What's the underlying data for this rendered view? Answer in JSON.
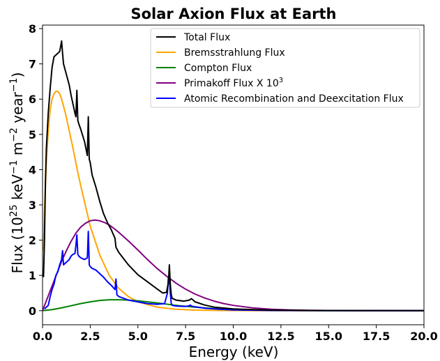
{
  "chart_data": {
    "type": "line",
    "title": "Solar Axion Flux at Earth",
    "xlabel": "Energy (keV)",
    "ylabel": {
      "prefix": "Flux (10",
      "sup1": "25",
      "mid1": " keV",
      "sup2": "−1",
      "mid2": " m",
      "sup3": "−2",
      "mid3": " year",
      "sup4": "−1",
      "suffix": ")"
    },
    "xlim": [
      0,
      20
    ],
    "ylim": [
      -0.4,
      8.1
    ],
    "xticks": [
      0.0,
      2.5,
      5.0,
      7.5,
      10.0,
      12.5,
      15.0,
      17.5,
      20.0
    ],
    "xtick_labels": [
      "0.0",
      "2.5",
      "5.0",
      "7.5",
      "10.0",
      "12.5",
      "15.0",
      "17.5",
      "20.0"
    ],
    "yticks": [
      0,
      1,
      2,
      3,
      4,
      5,
      6,
      7,
      8
    ],
    "ytick_labels": [
      "0",
      "1",
      "2",
      "3",
      "4",
      "5",
      "6",
      "7",
      "8"
    ],
    "grid": false,
    "legend_position": "top-right",
    "series": [
      {
        "name": "Total Flux",
        "color": "#000000",
        "x": [
          0.05,
          0.1,
          0.12,
          0.15,
          0.2,
          0.3,
          0.4,
          0.5,
          0.6,
          0.7,
          0.8,
          0.9,
          1.0,
          1.05,
          1.1,
          1.2,
          1.3,
          1.4,
          1.5,
          1.6,
          1.7,
          1.75,
          1.8,
          1.85,
          1.9,
          2.0,
          2.2,
          2.35,
          2.4,
          2.45,
          2.5,
          2.6,
          2.8,
          3.0,
          3.2,
          3.4,
          3.6,
          3.8,
          3.85,
          3.9,
          4.0,
          4.5,
          5.0,
          5.5,
          6.0,
          6.3,
          6.5,
          6.6,
          6.65,
          6.7,
          6.75,
          6.8,
          7.0,
          7.4,
          7.7,
          7.8,
          7.9,
          8.0,
          8.5,
          9.0,
          10.0,
          11.0,
          12.0,
          13.0,
          14.0,
          15.0,
          17.5,
          20.0
        ],
        "y": [
          0.95,
          1.95,
          2.6,
          3.6,
          4.6,
          5.6,
          6.3,
          6.9,
          7.2,
          7.25,
          7.3,
          7.35,
          7.65,
          7.3,
          7.0,
          6.8,
          6.6,
          6.4,
          6.1,
          5.85,
          5.6,
          5.5,
          6.25,
          5.4,
          5.3,
          5.15,
          4.8,
          4.4,
          5.5,
          4.3,
          4.2,
          3.85,
          3.5,
          3.1,
          2.75,
          2.5,
          2.3,
          2.05,
          1.8,
          1.75,
          1.65,
          1.3,
          1.02,
          0.82,
          0.62,
          0.5,
          0.52,
          0.8,
          1.3,
          0.75,
          0.45,
          0.35,
          0.3,
          0.27,
          0.3,
          0.34,
          0.3,
          0.25,
          0.16,
          0.1,
          0.05,
          0.03,
          0.015,
          0.01,
          0.006,
          0.004,
          0.002,
          0.001
        ]
      },
      {
        "name": "Bremsstrahlung Flux",
        "color": "#ffa500",
        "x": [
          0.05,
          0.1,
          0.2,
          0.3,
          0.4,
          0.5,
          0.6,
          0.7,
          0.8,
          0.9,
          1.0,
          1.2,
          1.4,
          1.6,
          1.8,
          2.0,
          2.5,
          3.0,
          3.5,
          4.0,
          4.5,
          5.0,
          6.0,
          7.0,
          8.0,
          9.0,
          10.0,
          12.5,
          15.0,
          20.0
        ],
        "y": [
          1.7,
          2.8,
          4.2,
          5.1,
          5.7,
          6.0,
          6.15,
          6.22,
          6.22,
          6.15,
          6.0,
          5.6,
          5.1,
          4.6,
          4.05,
          3.55,
          2.4,
          1.58,
          1.0,
          0.63,
          0.4,
          0.25,
          0.1,
          0.04,
          0.016,
          0.007,
          0.003,
          0.0005,
          0.0001,
          0.0
        ]
      },
      {
        "name": "Compton Flux",
        "color": "#008000",
        "x": [
          0.0,
          0.5,
          1.0,
          1.5,
          2.0,
          2.5,
          3.0,
          3.5,
          4.0,
          4.5,
          5.0,
          5.5,
          6.0,
          7.0,
          8.0,
          9.0,
          10.0,
          11.0,
          12.0,
          13.0,
          15.0,
          20.0
        ],
        "y": [
          0.0,
          0.03,
          0.08,
          0.14,
          0.2,
          0.25,
          0.29,
          0.31,
          0.31,
          0.3,
          0.28,
          0.25,
          0.22,
          0.15,
          0.1,
          0.06,
          0.035,
          0.02,
          0.01,
          0.005,
          0.001,
          0.0
        ]
      },
      {
        "name": "Primakoff Flux X 10^3",
        "label_text": "Primakoff Flux X 10",
        "label_sup": "3",
        "color": "#800080",
        "x": [
          0.0,
          0.25,
          0.5,
          0.75,
          1.0,
          1.25,
          1.5,
          1.75,
          2.0,
          2.25,
          2.5,
          2.75,
          3.0,
          3.25,
          3.5,
          3.75,
          4.0,
          4.5,
          5.0,
          5.5,
          6.0,
          6.5,
          7.0,
          7.5,
          8.0,
          8.5,
          9.0,
          9.5,
          10.0,
          11.0,
          12.0,
          13.0,
          14.0,
          15.0,
          17.5,
          20.0
        ],
        "y": [
          0.0,
          0.35,
          0.7,
          1.05,
          1.4,
          1.7,
          1.97,
          2.2,
          2.37,
          2.48,
          2.55,
          2.57,
          2.55,
          2.5,
          2.43,
          2.33,
          2.22,
          1.98,
          1.72,
          1.45,
          1.2,
          0.98,
          0.78,
          0.61,
          0.47,
          0.36,
          0.27,
          0.2,
          0.15,
          0.08,
          0.04,
          0.02,
          0.01,
          0.005,
          0.001,
          0.0
        ]
      },
      {
        "name": "Atomic Recombination and Deexcitation Flux",
        "color": "#0000ff",
        "x": [
          0.1,
          0.2,
          0.3,
          0.4,
          0.5,
          0.6,
          0.7,
          0.8,
          0.9,
          1.0,
          1.05,
          1.1,
          1.2,
          1.3,
          1.4,
          1.5,
          1.6,
          1.7,
          1.75,
          1.8,
          1.85,
          1.9,
          2.0,
          2.2,
          2.35,
          2.4,
          2.45,
          2.5,
          2.6,
          2.8,
          3.0,
          3.2,
          3.4,
          3.6,
          3.8,
          3.85,
          3.9,
          4.0,
          4.5,
          5.0,
          5.5,
          6.0,
          6.4,
          6.55,
          6.6,
          6.65,
          6.7,
          6.75,
          6.8,
          7.0,
          7.5,
          7.7,
          7.75,
          7.8,
          8.0,
          8.5,
          9.0,
          10.0,
          12.0,
          15.0,
          20.0
        ],
        "y": [
          0.05,
          0.1,
          0.15,
          0.4,
          0.6,
          0.75,
          1.0,
          1.1,
          1.3,
          1.45,
          1.7,
          1.3,
          1.35,
          1.4,
          1.45,
          1.55,
          1.6,
          1.62,
          1.85,
          2.15,
          1.6,
          1.55,
          1.5,
          1.45,
          1.5,
          2.25,
          1.3,
          1.25,
          1.2,
          1.15,
          1.05,
          0.95,
          0.82,
          0.72,
          0.6,
          0.9,
          0.45,
          0.4,
          0.3,
          0.25,
          0.2,
          0.18,
          0.2,
          0.5,
          0.95,
          0.9,
          0.5,
          0.2,
          0.15,
          0.13,
          0.12,
          0.14,
          0.16,
          0.13,
          0.11,
          0.07,
          0.05,
          0.02,
          0.005,
          0.001,
          0.0
        ]
      }
    ]
  }
}
